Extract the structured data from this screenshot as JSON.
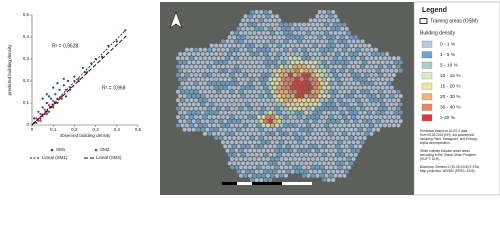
{
  "chart_data": [
    {
      "type": "scatter",
      "x_label": "observed building density",
      "y_label": "predicted building density",
      "xlim": [
        0,
        0.5
      ],
      "ylim": [
        0,
        0.5
      ],
      "xticks": [
        0,
        {
          "value": 0.1,
          "label": "0,1"
        },
        {
          "value": 0.2,
          "label": "0,2"
        },
        {
          "value": 0.3,
          "label": "0,3"
        },
        {
          "value": 0.4,
          "label": "0,4"
        },
        {
          "value": 0.5,
          "label": "0,5"
        }
      ],
      "yticks": [
        0,
        {
          "value": 0.1,
          "label": "0,1"
        },
        {
          "value": 0.2,
          "label": "0,2"
        },
        {
          "value": 0.3,
          "label": "0,3"
        },
        {
          "value": 0.4,
          "label": "0,4"
        },
        {
          "value": 0.5,
          "label": "0,5"
        }
      ],
      "series": [
        {
          "name": "SM1",
          "color": "#1f3fbf",
          "x": [
            0.01,
            0.02,
            0.03,
            0.04,
            0.05,
            0.06,
            0.07,
            0.08,
            0.09,
            0.1,
            0.11,
            0.12,
            0.13,
            0.14,
            0.15,
            0.16,
            0.17,
            0.18,
            0.2,
            0.22,
            0.24,
            0.26,
            0.28,
            0.3,
            0.33,
            0.36,
            0.4,
            0.44,
            0.05,
            0.08,
            0.12,
            0.15,
            0.1,
            0.07
          ],
          "values": [
            0.03,
            0.01,
            0.06,
            0.03,
            0.08,
            0.05,
            0.1,
            0.06,
            0.12,
            0.08,
            0.14,
            0.1,
            0.16,
            0.12,
            0.18,
            0.13,
            0.2,
            0.16,
            0.22,
            0.2,
            0.26,
            0.24,
            0.28,
            0.3,
            0.31,
            0.36,
            0.38,
            0.43,
            0.12,
            0.13,
            0.19,
            0.21,
            0.17,
            0.14
          ]
        },
        {
          "name": "SM2",
          "color": "#e0283a",
          "x": [
            0.01,
            0.02,
            0.03,
            0.04,
            0.05,
            0.06,
            0.07,
            0.08,
            0.09,
            0.1,
            0.11,
            0.12,
            0.14,
            0.16,
            0.18,
            0.2,
            0.22,
            0.25,
            0.04,
            0.07,
            0.1
          ],
          "values": [
            0.01,
            0.03,
            0.02,
            0.05,
            0.04,
            0.07,
            0.06,
            0.09,
            0.08,
            0.11,
            0.1,
            0.12,
            0.13,
            0.16,
            0.17,
            0.2,
            0.21,
            0.24,
            0.02,
            0.05,
            0.09
          ]
        }
      ],
      "trendlines": [
        {
          "name": "Lineal (SM1)",
          "color": "#111111",
          "x": [
            0,
            0.44
          ],
          "values": [
            0,
            0.43
          ]
        },
        {
          "name": "Lineal (SM2)",
          "color": "#111111",
          "x": [
            0,
            0.45
          ],
          "values": [
            0,
            0.41
          ]
        }
      ],
      "annotations": [
        "R² = 0,9628",
        "R² = 0,968"
      ]
    },
    {
      "type": "map",
      "legend_title": "Legend",
      "training_areas": "Training areas (OSM)",
      "density_title": "Building density",
      "classes": [
        {
          "label": "0 - 1 %",
          "color": "#b8cbe0"
        },
        {
          "label": "1 - 5 %",
          "color": "#6ea3cf"
        },
        {
          "label": "5 - 10 %",
          "color": "#a8d0cf"
        },
        {
          "label": "10 - 15 %",
          "color": "#dfeac0"
        },
        {
          "label": "15 - 20 %",
          "color": "#f3e2a0"
        },
        {
          "label": "20 - 30 %",
          "color": "#efb878"
        },
        {
          "label": "30 - 40 %",
          "color": "#e8866a"
        },
        {
          "label": "> 40 %",
          "color": "#d63e3e"
        }
      ],
      "notes": [
        [
          "Prediction based on ALOS-2 data",
          "from 05.05.2015 (HH), full-polarimetric",
          "including Pauli, Yamaguchi, and Entropy-",
          "Alpha decomposition."
        ],
        [
          "White outlines indicate urban areas",
          "according to the Global Urban Footprint",
          "(GUF © DLR)."
        ],
        [
          "Basemap: Sentinel-2 (29.05.2018) © ESA,",
          "Map projection: WGS84 (EPSG: 4326)"
        ]
      ]
    }
  ]
}
